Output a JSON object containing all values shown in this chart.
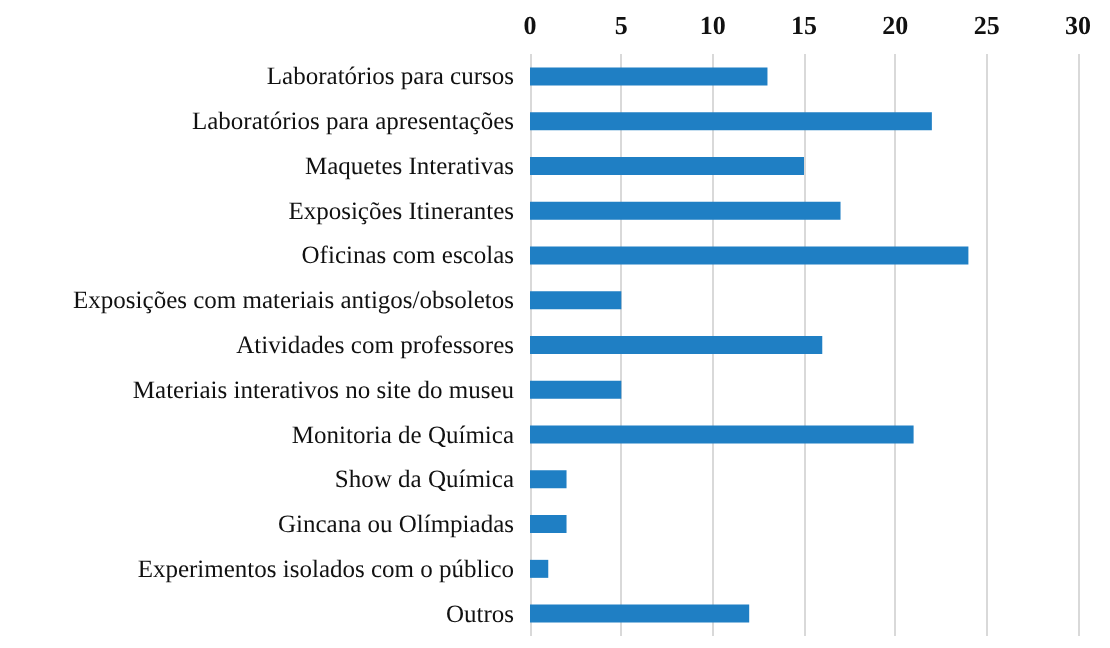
{
  "chart_data": {
    "type": "bar",
    "orientation": "horizontal",
    "categories": [
      "Laboratórios para cursos",
      "Laboratórios para apresentações",
      "Maquetes Interativas",
      "Exposições Itinerantes",
      "Oficinas com escolas",
      "Exposições com materiais antigos/obsoletos",
      "Atividades com professores",
      "Materiais interativos no site do museu",
      "Monitoria de Química",
      "Show da Química",
      "Gincana ou Olímpiadas",
      "Experimentos isolados com o público",
      "Outros"
    ],
    "values": [
      13,
      22,
      15,
      17,
      24,
      5,
      16,
      5,
      21,
      2,
      2,
      1,
      12
    ],
    "color": "#1f7fc4",
    "xlim": [
      0,
      30
    ],
    "xticks": [
      0,
      5,
      10,
      15,
      20,
      25,
      30
    ],
    "grid": "x"
  }
}
